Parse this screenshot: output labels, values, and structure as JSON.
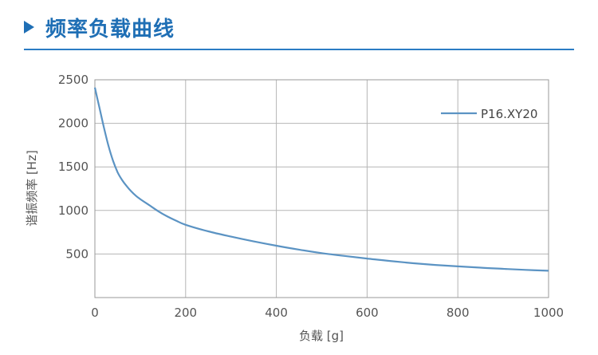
{
  "header": {
    "title": "频率负载曲线",
    "arrow_icon": "play-triangle-icon",
    "accent_color": "#1f6fb5"
  },
  "chart_data": {
    "type": "line",
    "xlabel": "负载 [g]",
    "ylabel": "谐振频率 [Hz]",
    "xlim": [
      0,
      1000
    ],
    "ylim": [
      0,
      2500
    ],
    "xticks": [
      "0",
      "200",
      "400",
      "600",
      "800",
      "1000"
    ],
    "yticks": [
      "500",
      "1000",
      "1500",
      "2000",
      "2500"
    ],
    "grid": true,
    "legend_position": "top-right",
    "series": [
      {
        "name": "P16.XY20",
        "color": "#5b93c3",
        "x": [
          0,
          10,
          20,
          30,
          40,
          50,
          60,
          70,
          80,
          90,
          100,
          120,
          140,
          160,
          180,
          200,
          250,
          300,
          350,
          400,
          450,
          500,
          550,
          600,
          650,
          700,
          750,
          800,
          850,
          900,
          950,
          1000
        ],
        "y": [
          2410,
          2180,
          1950,
          1740,
          1570,
          1440,
          1350,
          1280,
          1220,
          1170,
          1130,
          1060,
          990,
          930,
          880,
          835,
          760,
          700,
          645,
          595,
          550,
          510,
          478,
          448,
          420,
          395,
          375,
          358,
          343,
          330,
          318,
          308
        ]
      }
    ]
  }
}
